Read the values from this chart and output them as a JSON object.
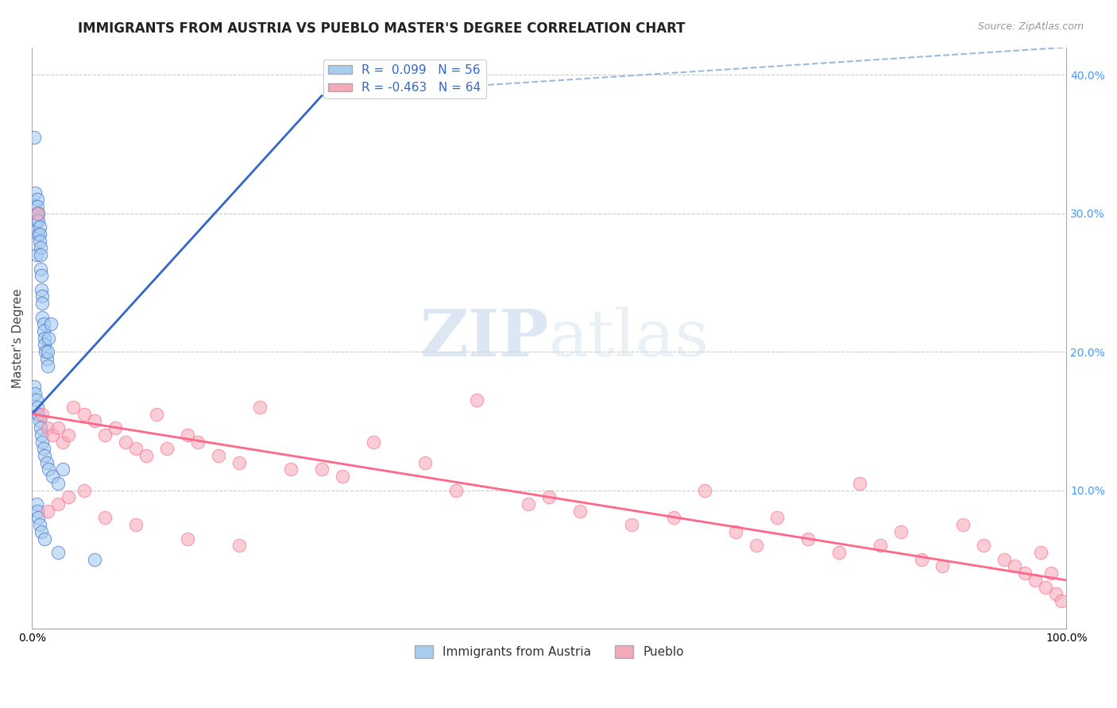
{
  "title": "IMMIGRANTS FROM AUSTRIA VS PUEBLO MASTER'S DEGREE CORRELATION CHART",
  "source_text": "Source: ZipAtlas.com",
  "ylabel": "Master's Degree",
  "xlim": [
    0,
    1.0
  ],
  "ylim": [
    0,
    0.42
  ],
  "xticks": [
    0.0,
    0.1,
    0.2,
    0.3,
    0.4,
    0.5,
    0.6,
    0.7,
    0.8,
    0.9,
    1.0
  ],
  "yticks": [
    0.0,
    0.1,
    0.2,
    0.3,
    0.4
  ],
  "blue_R": 0.099,
  "blue_N": 56,
  "pink_R": -0.463,
  "pink_N": 64,
  "blue_color": "#A8CCF0",
  "pink_color": "#F5AABB",
  "blue_line_color": "#3366CC",
  "pink_line_color": "#FF6688",
  "dash_line_color": "#99BBDD",
  "legend_label_blue": "Immigrants from Austria",
  "legend_label_pink": "Pueblo",
  "watermark_zip": "ZIP",
  "watermark_atlas": "atlas",
  "blue_scatter_x": [
    0.002,
    0.003,
    0.003,
    0.004,
    0.004,
    0.005,
    0.005,
    0.005,
    0.006,
    0.006,
    0.006,
    0.007,
    0.007,
    0.007,
    0.008,
    0.008,
    0.008,
    0.009,
    0.009,
    0.01,
    0.01,
    0.01,
    0.011,
    0.011,
    0.012,
    0.012,
    0.013,
    0.014,
    0.015,
    0.015,
    0.016,
    0.018,
    0.002,
    0.003,
    0.004,
    0.005,
    0.006,
    0.007,
    0.008,
    0.009,
    0.01,
    0.011,
    0.012,
    0.014,
    0.016,
    0.02,
    0.025,
    0.03,
    0.004,
    0.005,
    0.006,
    0.007,
    0.009,
    0.012,
    0.025,
    0.06
  ],
  "blue_scatter_y": [
    0.355,
    0.305,
    0.315,
    0.295,
    0.27,
    0.31,
    0.305,
    0.3,
    0.3,
    0.295,
    0.285,
    0.29,
    0.285,
    0.28,
    0.275,
    0.27,
    0.26,
    0.255,
    0.245,
    0.24,
    0.235,
    0.225,
    0.22,
    0.215,
    0.21,
    0.205,
    0.2,
    0.195,
    0.19,
    0.2,
    0.21,
    0.22,
    0.175,
    0.17,
    0.165,
    0.16,
    0.155,
    0.15,
    0.145,
    0.14,
    0.135,
    0.13,
    0.125,
    0.12,
    0.115,
    0.11,
    0.105,
    0.115,
    0.09,
    0.085,
    0.08,
    0.075,
    0.07,
    0.065,
    0.055,
    0.05
  ],
  "pink_scatter_x": [
    0.005,
    0.01,
    0.015,
    0.02,
    0.025,
    0.03,
    0.035,
    0.04,
    0.05,
    0.06,
    0.07,
    0.08,
    0.09,
    0.1,
    0.11,
    0.12,
    0.13,
    0.15,
    0.16,
    0.18,
    0.2,
    0.22,
    0.25,
    0.28,
    0.3,
    0.33,
    0.38,
    0.41,
    0.43,
    0.48,
    0.5,
    0.53,
    0.58,
    0.62,
    0.65,
    0.68,
    0.7,
    0.72,
    0.75,
    0.78,
    0.8,
    0.82,
    0.84,
    0.86,
    0.88,
    0.9,
    0.92,
    0.94,
    0.95,
    0.96,
    0.97,
    0.975,
    0.98,
    0.985,
    0.99,
    0.995,
    0.015,
    0.025,
    0.035,
    0.05,
    0.07,
    0.1,
    0.15,
    0.2
  ],
  "pink_scatter_y": [
    0.3,
    0.155,
    0.145,
    0.14,
    0.145,
    0.135,
    0.14,
    0.16,
    0.155,
    0.15,
    0.14,
    0.145,
    0.135,
    0.13,
    0.125,
    0.155,
    0.13,
    0.14,
    0.135,
    0.125,
    0.12,
    0.16,
    0.115,
    0.115,
    0.11,
    0.135,
    0.12,
    0.1,
    0.165,
    0.09,
    0.095,
    0.085,
    0.075,
    0.08,
    0.1,
    0.07,
    0.06,
    0.08,
    0.065,
    0.055,
    0.105,
    0.06,
    0.07,
    0.05,
    0.045,
    0.075,
    0.06,
    0.05,
    0.045,
    0.04,
    0.035,
    0.055,
    0.03,
    0.04,
    0.025,
    0.02,
    0.085,
    0.09,
    0.095,
    0.1,
    0.08,
    0.075,
    0.065,
    0.06
  ],
  "blue_trend_x": [
    0.0,
    0.28
  ],
  "blue_trend_y_start": 0.155,
  "blue_trend_y_end": 0.385,
  "blue_dash_trend_x": [
    0.28,
    1.0
  ],
  "blue_dash_trend_y_start": 0.385,
  "blue_dash_trend_y_end": 0.42,
  "pink_trend_x": [
    0.0,
    1.0
  ],
  "pink_trend_y_start": 0.155,
  "pink_trend_y_end": 0.035,
  "title_fontsize": 12,
  "axis_fontsize": 10,
  "legend_fontsize": 11
}
